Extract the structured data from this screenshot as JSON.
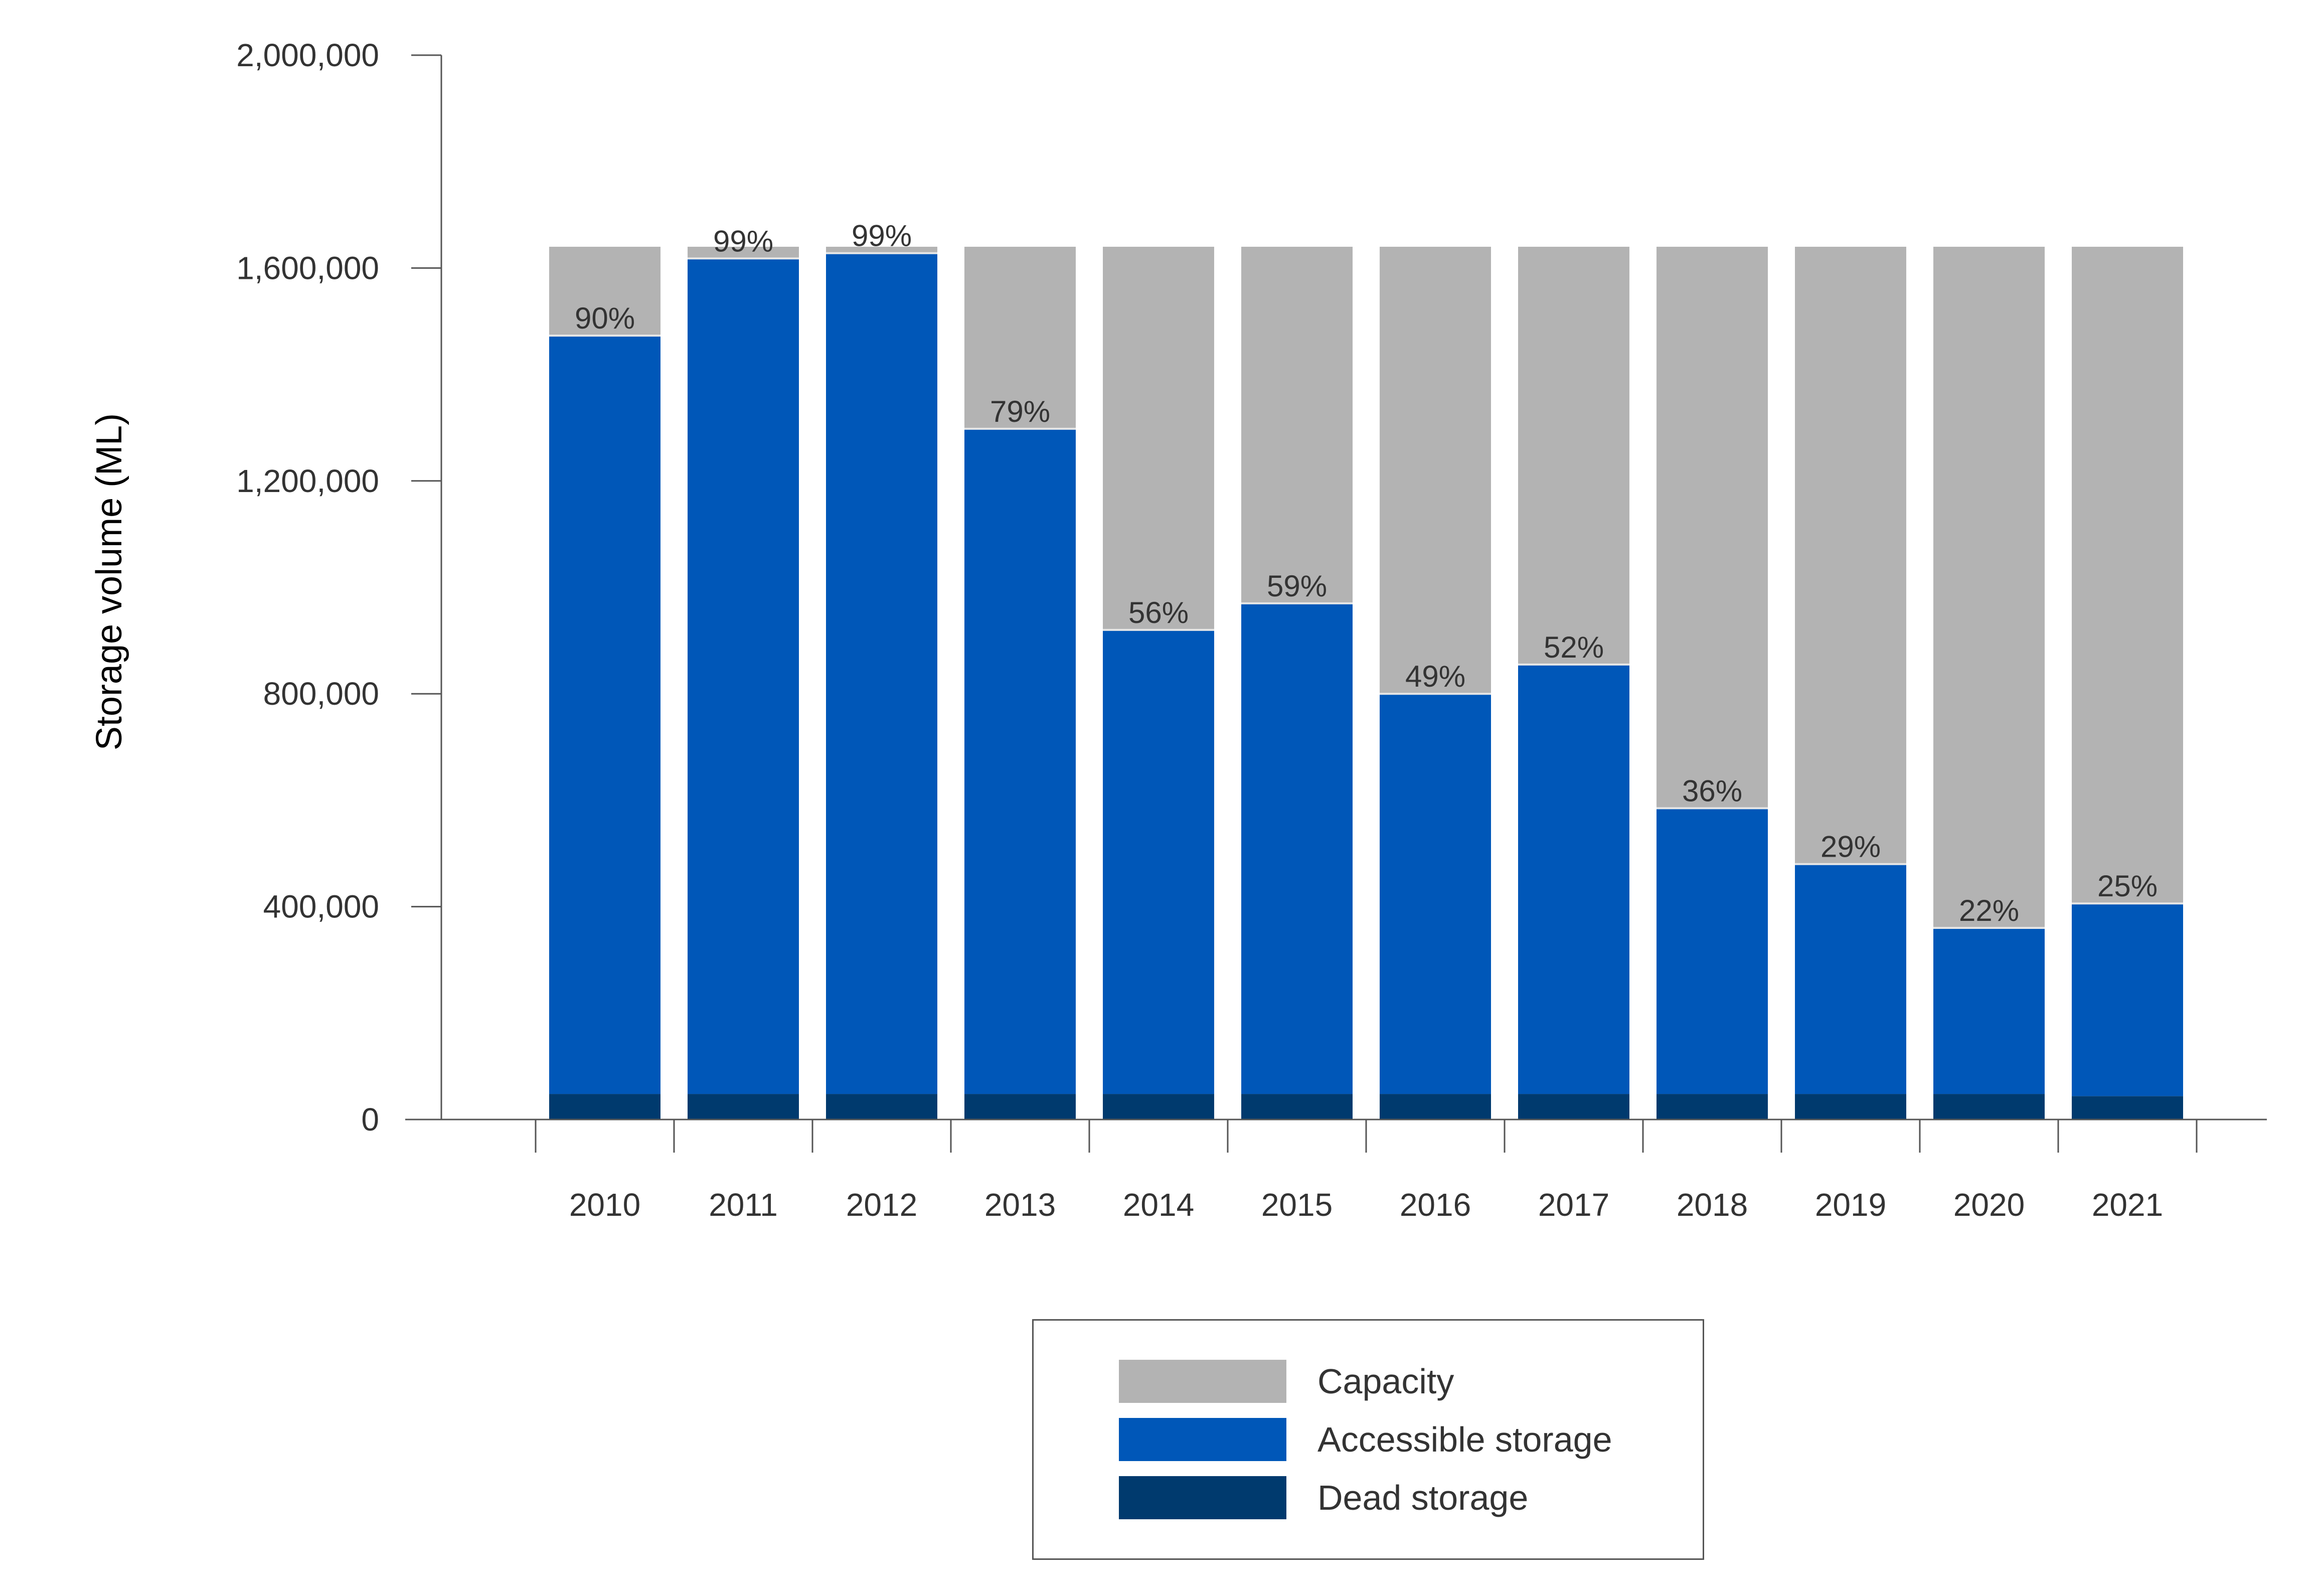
{
  "chart_data": {
    "type": "bar",
    "stacked": true,
    "title": "",
    "xlabel": "",
    "ylabel": "Storage volume (ML)",
    "ylim": [
      0,
      2000000
    ],
    "yticks": [
      0,
      400000,
      800000,
      1200000,
      1600000,
      2000000
    ],
    "ytick_labels": [
      "0",
      "400,000",
      "800,000",
      "1,200,000",
      "1,600,000",
      "2,000,000"
    ],
    "categories": [
      "2010",
      "2011",
      "2012",
      "2013",
      "2014",
      "2015",
      "2016",
      "2017",
      "2018",
      "2019",
      "2020",
      "2021"
    ],
    "capacity_total": 1640000,
    "series": [
      {
        "name": "Dead storage",
        "values": [
          48000,
          48000,
          48000,
          48000,
          48000,
          48000,
          48000,
          48000,
          48000,
          48000,
          48000,
          44000
        ]
      },
      {
        "name": "Accessible storage",
        "values": [
          1425000,
          1570000,
          1580000,
          1250000,
          872000,
          922000,
          752000,
          807000,
          537000,
          432000,
          312000,
          362000
        ]
      },
      {
        "name": "Capacity",
        "values": [
          167000,
          22000,
          12000,
          342000,
          720000,
          670000,
          840000,
          785000,
          1055000,
          1160000,
          1280000,
          1234000
        ]
      }
    ],
    "percent_labels": [
      "90%",
      "99%",
      "99%",
      "79%",
      "56%",
      "59%",
      "49%",
      "52%",
      "36%",
      "29%",
      "22%",
      "25%"
    ],
    "colors": {
      "Capacity": "#b3b3b3",
      "Accessible storage": "#0057b8",
      "Dead storage": "#003a6e"
    },
    "legend_position": "bottom-center",
    "legend": [
      "Capacity",
      "Accessible storage",
      "Dead storage"
    ],
    "grid": false
  }
}
